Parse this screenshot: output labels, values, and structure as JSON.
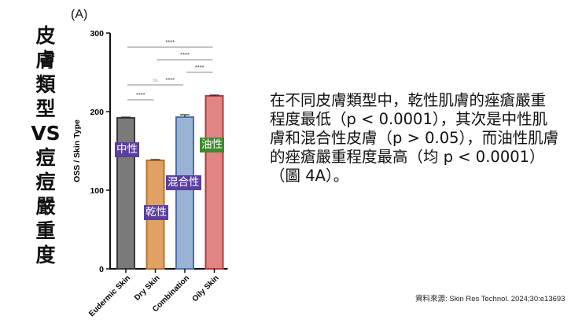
{
  "title_chars": [
    "皮",
    "膚",
    "類",
    "型",
    "VS",
    "痘",
    "痘",
    "嚴",
    "重",
    "度"
  ],
  "panel_label": "(A)",
  "description": "在不同皮膚類型中，乾性肌膚的痤瘡嚴重程度最低（p < 0.0001），其次是中性肌膚和混合性皮膚（p > 0.05），而油性肌膚的痤瘡嚴重程度最高（均 p < 0.0001）（圖 4A）。",
  "source": "資料來源: Skin Res Technol. 2024;30:e13693",
  "overlay_labels": [
    {
      "text": "中性",
      "color": "#5b3fa0"
    },
    {
      "text": "乾性",
      "color": "#5b3fa0"
    },
    {
      "text": "混合性",
      "color": "#5b3fa0"
    },
    {
      "text": "油性",
      "color": "#3f8a2e"
    }
  ],
  "chart_data": {
    "type": "bar",
    "categories": [
      "Eudermic Skin",
      "Dry Skin",
      "Combination",
      "Oily Skin"
    ],
    "values": [
      192,
      138,
      193,
      220
    ],
    "errors": [
      1,
      1,
      3,
      1
    ],
    "colors": [
      "#7a7a7a",
      "#e0a264",
      "#9ab2d4",
      "#e08484"
    ],
    "edge_colors": [
      "#3a3a3a",
      "#b7712e",
      "#4b6fa5",
      "#b23a3a"
    ],
    "ylabel": "OSS / Skin Type",
    "ylim": [
      0,
      300
    ],
    "yticks": [
      0,
      100,
      200,
      300
    ],
    "comparisons": [
      {
        "from": 0,
        "to": 1,
        "label": "****"
      },
      {
        "from": 0,
        "to": 2,
        "label": "ns"
      },
      {
        "from": 1,
        "to": 2,
        "label": "****"
      },
      {
        "from": 2,
        "to": 3,
        "label": "****"
      },
      {
        "from": 1,
        "to": 3,
        "label": "****"
      },
      {
        "from": 0,
        "to": 3,
        "label": "****"
      }
    ]
  }
}
